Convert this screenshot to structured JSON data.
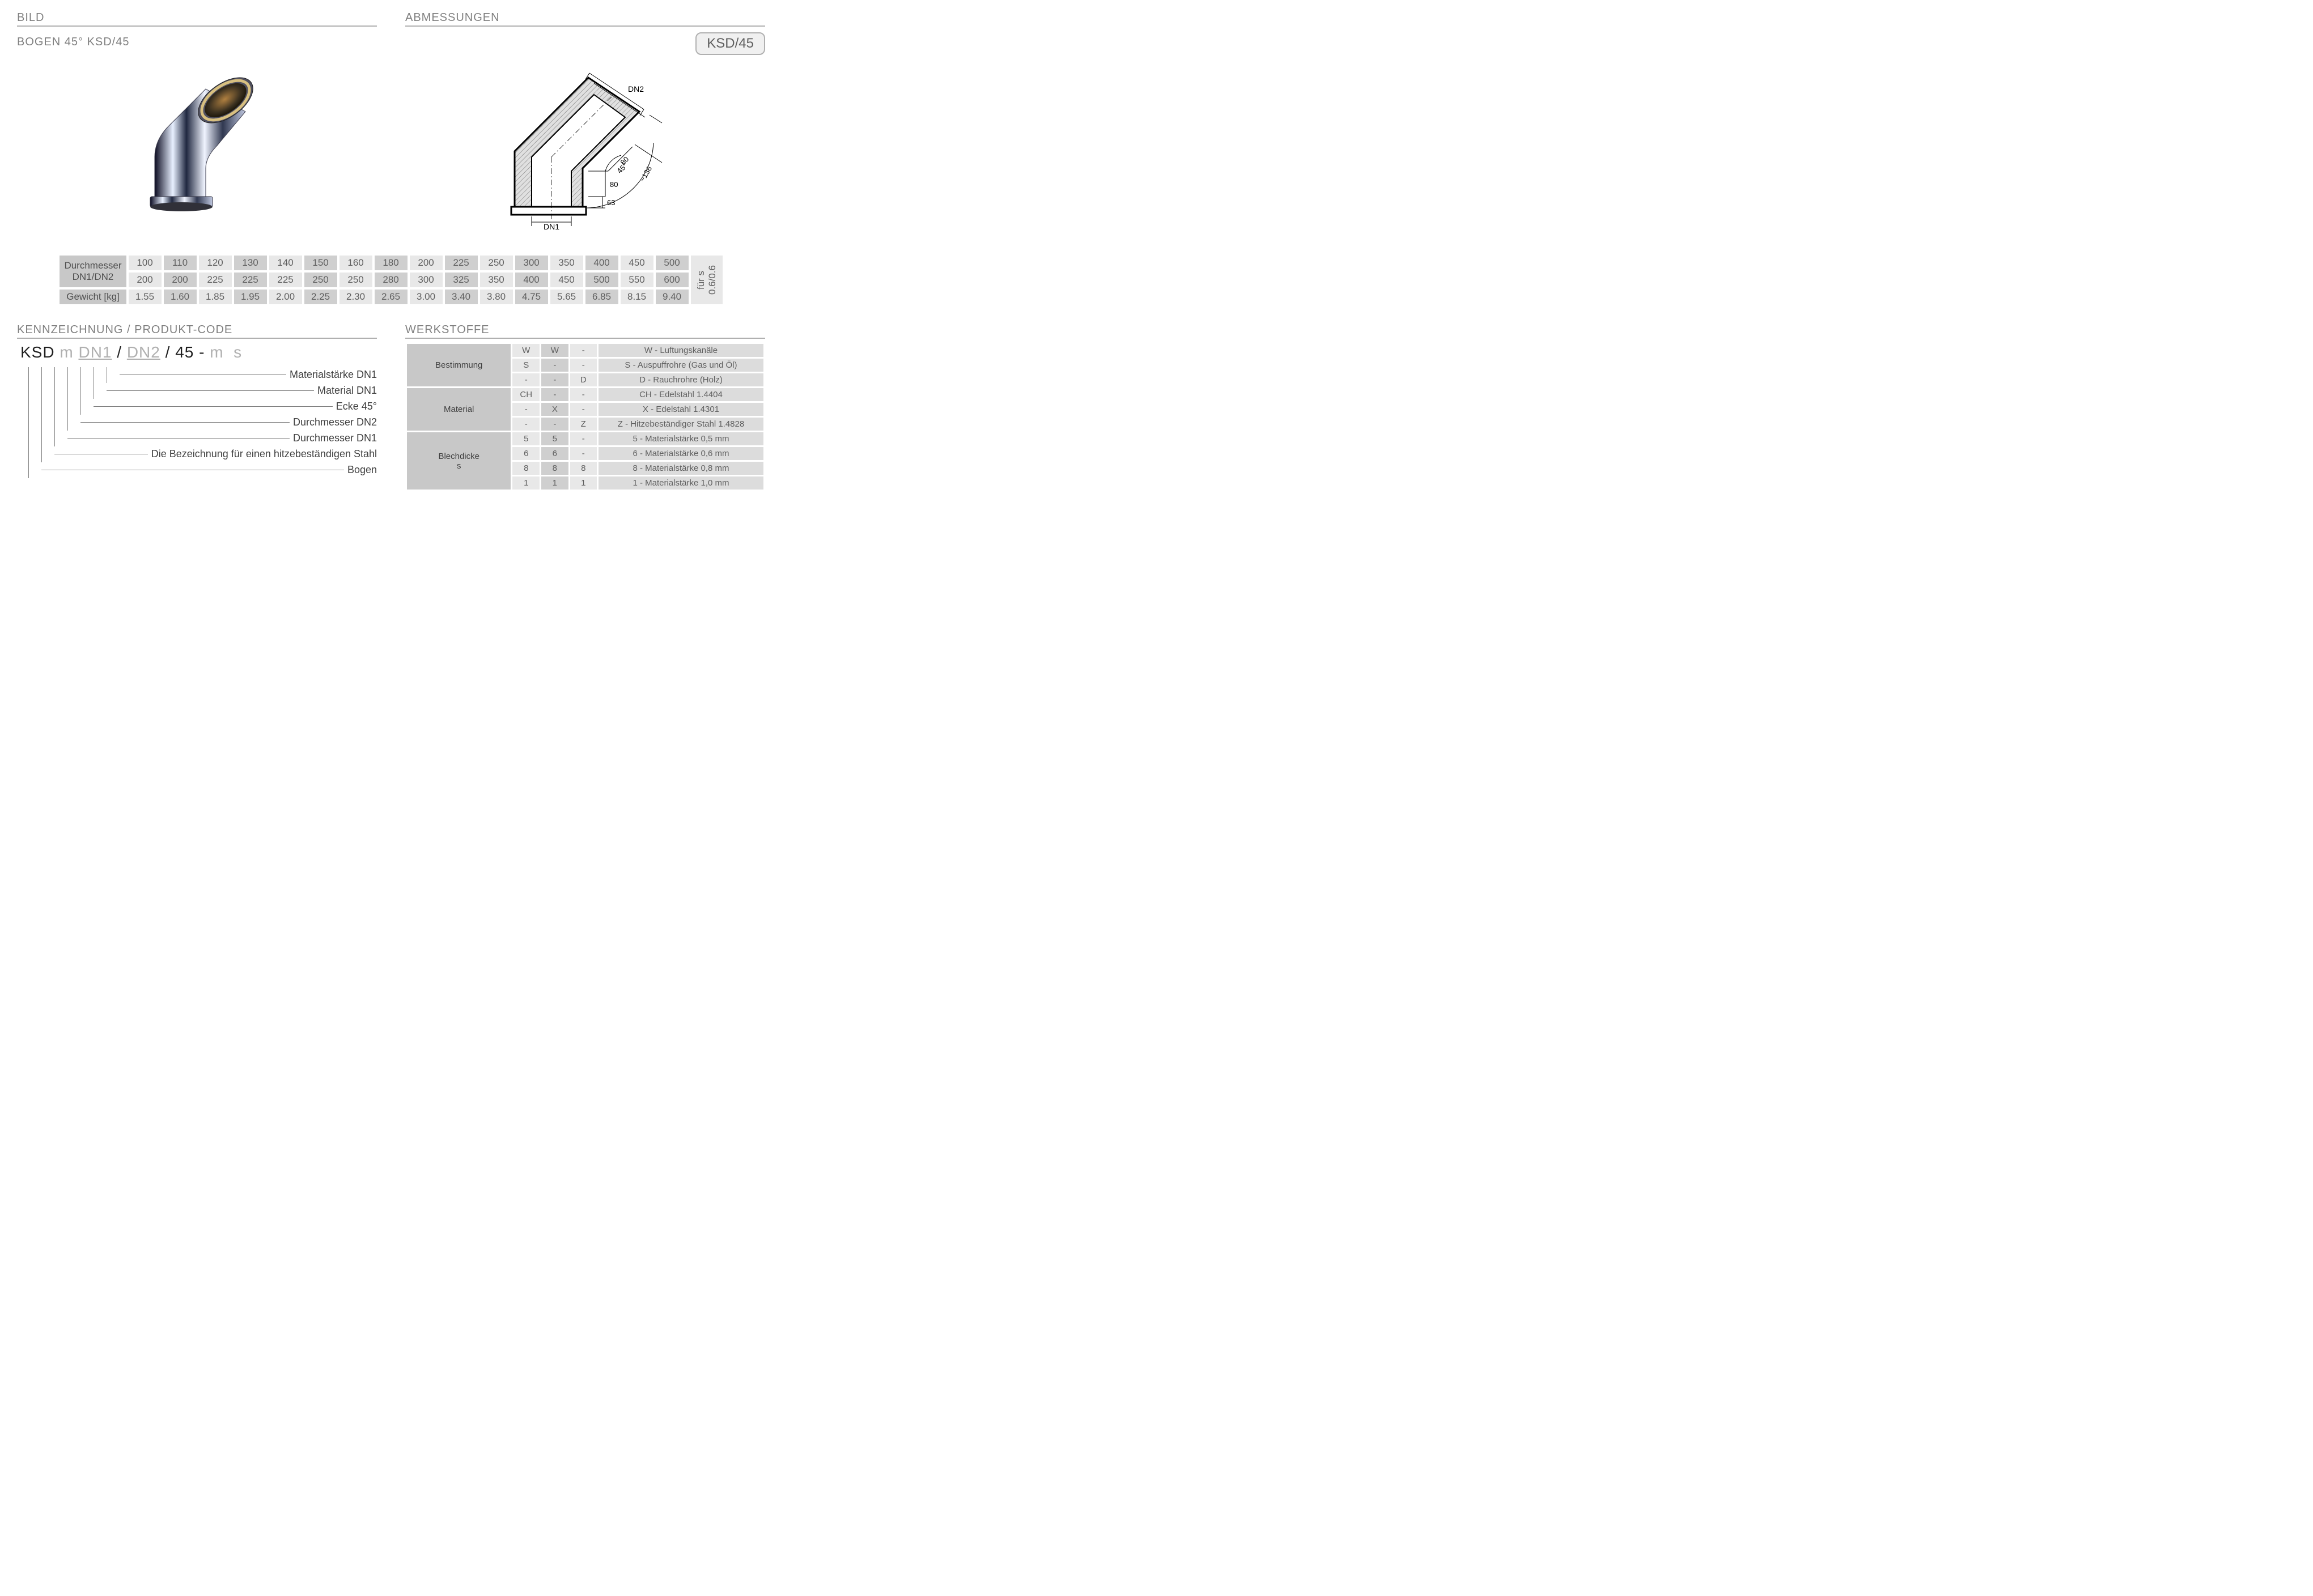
{
  "headers": {
    "bild": "BILD",
    "abmessungen": "ABMESSUNGEN",
    "kennzeichnung": "KENNZEICHNUNG  / PRODUKT-CODE",
    "werkstoffe": "WERKSTOFFE"
  },
  "product_title": "BOGEN  45° KSD/45",
  "badge": "KSD/45",
  "drawing_labels": {
    "dn1": "DN1",
    "dn2": "DN2",
    "a80_1": "80",
    "a80_2": "80",
    "a63": "63",
    "ang": "45°",
    "r136": "~136"
  },
  "dim_table": {
    "row_hdr1": "Durchmesser",
    "row_hdr2": "DN1/DN2",
    "row_hdr3": "Gewicht [kg]",
    "side": "für s\n0.6/0.6",
    "dn1": [
      "100",
      "110",
      "120",
      "130",
      "140",
      "150",
      "160",
      "180",
      "200",
      "225",
      "250",
      "300",
      "350",
      "400",
      "450",
      "500"
    ],
    "dn2": [
      "200",
      "200",
      "225",
      "225",
      "225",
      "250",
      "250",
      "280",
      "300",
      "325",
      "350",
      "400",
      "450",
      "500",
      "550",
      "600"
    ],
    "wgt": [
      "1.55",
      "1.60",
      "1.85",
      "1.95",
      "2.00",
      "2.25",
      "2.30",
      "2.65",
      "3.00",
      "3.40",
      "3.80",
      "4.75",
      "5.65",
      "6.85",
      "8.15",
      "9.40"
    ],
    "alt_start_light": true
  },
  "code": {
    "p1": "KSD",
    "p2": "m",
    "p3": "DN1",
    "p4": "DN2",
    "p5": "45",
    "p6": "m",
    "p7": "s",
    "labels": [
      "Materialstärke DN1",
      "Material DN1",
      "Ecke 45°",
      "Durchmesser DN2",
      "Durchmesser DN1",
      "Die Bezeichnung für einen hitzebeständigen Stahl",
      "Bogen"
    ]
  },
  "werkstoffe": {
    "groups": [
      {
        "name": "Bestimmung",
        "rows": [
          {
            "c": [
              "W",
              "W",
              "-"
            ],
            "desc": "W - Luftungskanäle"
          },
          {
            "c": [
              "S",
              "-",
              "-"
            ],
            "desc": "S  - Auspuffrohre (Gas und Öl)"
          },
          {
            "c": [
              "-",
              "-",
              "D"
            ],
            "desc": "D  - Rauchrohre (Holz)"
          }
        ]
      },
      {
        "name": "Material",
        "rows": [
          {
            "c": [
              "CH",
              "-",
              "-"
            ],
            "desc": "CH - Edelstahl  1.4404"
          },
          {
            "c": [
              "-",
              "X",
              "-"
            ],
            "desc": "X   - Edelstahl  1.4301"
          },
          {
            "c": [
              "-",
              "-",
              "Z"
            ],
            "desc": "Z   - Hitzebeständiger Stahl 1.4828"
          }
        ]
      },
      {
        "name": "Blechdicke\ns",
        "rows": [
          {
            "c": [
              "5",
              "5",
              "-"
            ],
            "desc": "5 - Materialstärke 0,5 mm"
          },
          {
            "c": [
              "6",
              "6",
              "-"
            ],
            "desc": "6 - Materialstärke 0,6 mm"
          },
          {
            "c": [
              "8",
              "8",
              "8"
            ],
            "desc": "8 - Materialstärke 0,8 mm"
          },
          {
            "c": [
              "1",
              "1",
              "1"
            ],
            "desc": "1  - Materialstärke 1,0 mm"
          }
        ]
      }
    ]
  }
}
